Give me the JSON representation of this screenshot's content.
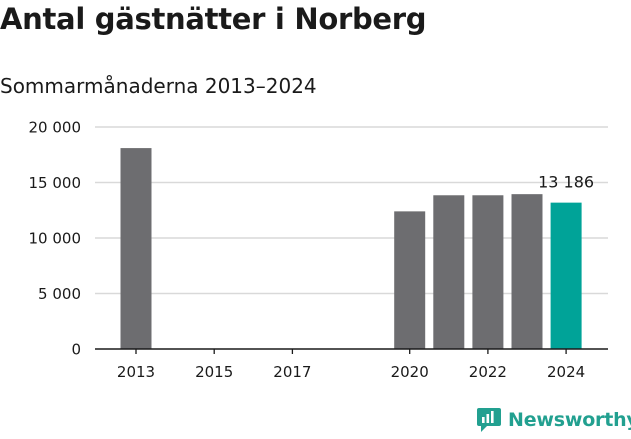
{
  "header": {
    "title": "Antal gästnätter i Norberg",
    "subtitle": "Sommarmånaderna 2013–2024"
  },
  "brand": {
    "name": "Newsworthy",
    "icon": "newsworthy-logo-icon",
    "color": "#22a090"
  },
  "colors": {
    "bar": "#6d6d70",
    "highlight": "#00a398",
    "grid": "#d9d9d9",
    "axis": "#1a1a1a"
  },
  "chart_data": {
    "type": "bar",
    "title": "Antal gästnätter i Norberg",
    "subtitle": "Sommarmånaderna 2013–2024",
    "xlabel": "",
    "ylabel": "",
    "ylim": [
      0,
      20000
    ],
    "yticks": [
      0,
      5000,
      10000,
      15000,
      20000
    ],
    "ytick_labels": [
      "0",
      "5 000",
      "10 000",
      "15 000",
      "20 000"
    ],
    "categories": [
      "2013",
      "2014",
      "2015",
      "2016",
      "2017",
      "2018",
      "2019",
      "2020",
      "2021",
      "2022",
      "2023",
      "2024"
    ],
    "values": [
      18100,
      null,
      null,
      null,
      null,
      null,
      null,
      12400,
      13850,
      13850,
      13950,
      13186
    ],
    "xtick_labels": [
      "2013",
      "2015",
      "2017",
      "2020",
      "2022",
      "2024"
    ],
    "highlight_category": "2024",
    "data_labels": [
      {
        "category": "2024",
        "text": "13 186"
      }
    ],
    "grid": true,
    "grid_axis": "y",
    "legend": "none"
  }
}
